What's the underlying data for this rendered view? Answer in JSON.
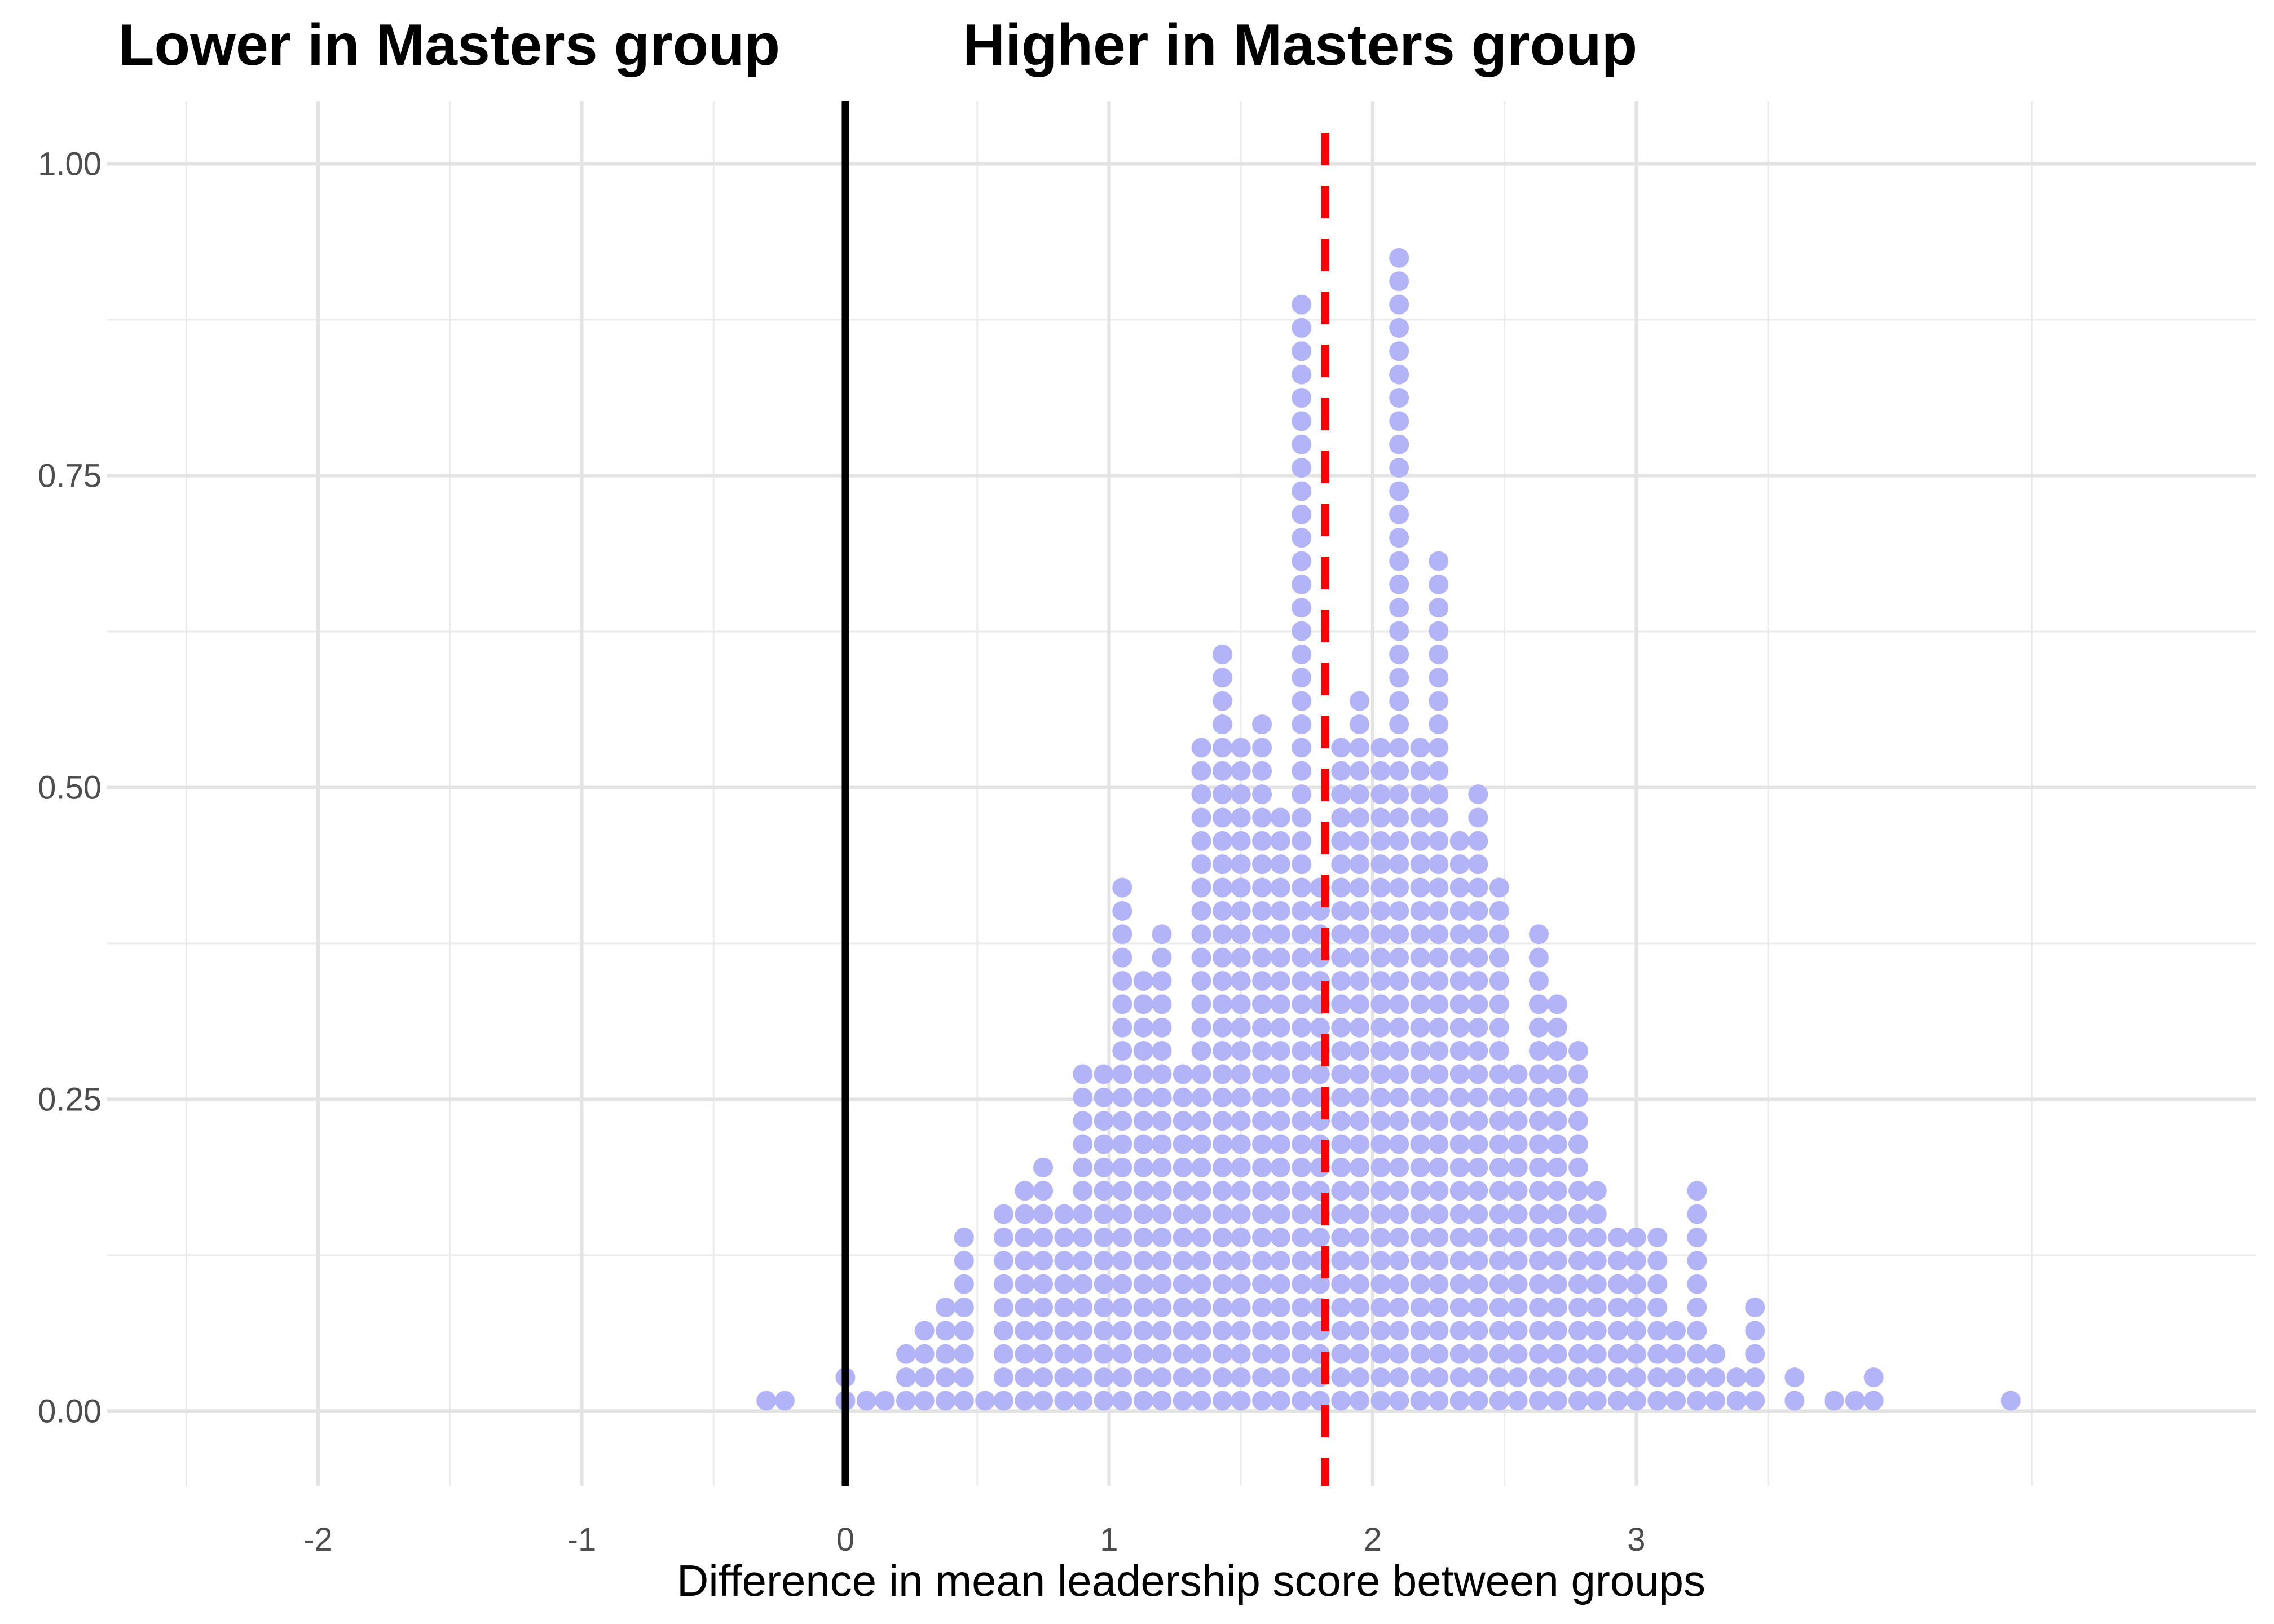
{
  "chart_data": {
    "type": "scatter",
    "subtype": "dotplot",
    "annotations": {
      "left": "Lower in Masters group",
      "right": "Higher in Masters group"
    },
    "xlabel": "Difference in mean leadership score between groups",
    "ylabel": "",
    "xlim": [
      -2.8,
      5.35
    ],
    "ylim": [
      -0.06,
      1.05
    ],
    "x_ticks": [
      -2,
      -1,
      0,
      1,
      2,
      3
    ],
    "x_tick_labels": [
      "-2",
      "-1",
      "0",
      "1",
      "2",
      "3"
    ],
    "y_ticks": [
      0,
      0.25,
      0.5,
      0.75,
      1
    ],
    "y_tick_labels": [
      "0.00",
      "0.25",
      "0.50",
      "0.75",
      "1.00"
    ],
    "grid": true,
    "dot_color": "#b3b3f7",
    "reference_lines": [
      {
        "x": 0,
        "color": "#000000",
        "style": "solid"
      },
      {
        "x": 1.82,
        "color": "#ff0000",
        "style": "dashed"
      }
    ],
    "stack_step": 0.0187,
    "stack_base": 0.0083,
    "stacks": [
      {
        "x": -0.3,
        "n": 1
      },
      {
        "x": -0.23,
        "n": 1
      },
      {
        "x": 0.0,
        "n": 2
      },
      {
        "x": 0.08,
        "n": 1
      },
      {
        "x": 0.15,
        "n": 1
      },
      {
        "x": 0.23,
        "n": 3
      },
      {
        "x": 0.3,
        "n": 4
      },
      {
        "x": 0.38,
        "n": 5
      },
      {
        "x": 0.45,
        "n": 8
      },
      {
        "x": 0.53,
        "n": 1
      },
      {
        "x": 0.6,
        "n": 9
      },
      {
        "x": 0.68,
        "n": 10
      },
      {
        "x": 0.75,
        "n": 11
      },
      {
        "x": 0.83,
        "n": 9
      },
      {
        "x": 0.9,
        "n": 15
      },
      {
        "x": 0.98,
        "n": 15
      },
      {
        "x": 1.05,
        "n": 23
      },
      {
        "x": 1.13,
        "n": 19
      },
      {
        "x": 1.2,
        "n": 21
      },
      {
        "x": 1.28,
        "n": 15
      },
      {
        "x": 1.35,
        "n": 29
      },
      {
        "x": 1.43,
        "n": 33
      },
      {
        "x": 1.5,
        "n": 29
      },
      {
        "x": 1.58,
        "n": 30
      },
      {
        "x": 1.65,
        "n": 26
      },
      {
        "x": 1.73,
        "n": 48
      },
      {
        "x": 1.8,
        "n": 23
      },
      {
        "x": 1.88,
        "n": 29
      },
      {
        "x": 1.95,
        "n": 31
      },
      {
        "x": 2.03,
        "n": 29
      },
      {
        "x": 2.1,
        "n": 50
      },
      {
        "x": 2.18,
        "n": 29
      },
      {
        "x": 2.25,
        "n": 37
      },
      {
        "x": 2.33,
        "n": 25
      },
      {
        "x": 2.4,
        "n": 27
      },
      {
        "x": 2.48,
        "n": 23
      },
      {
        "x": 2.55,
        "n": 15
      },
      {
        "x": 2.63,
        "n": 21
      },
      {
        "x": 2.7,
        "n": 18
      },
      {
        "x": 2.78,
        "n": 16
      },
      {
        "x": 2.85,
        "n": 10
      },
      {
        "x": 2.93,
        "n": 8
      },
      {
        "x": 3.0,
        "n": 8
      },
      {
        "x": 3.08,
        "n": 8
      },
      {
        "x": 3.15,
        "n": 4
      },
      {
        "x": 3.23,
        "n": 10
      },
      {
        "x": 3.3,
        "n": 3
      },
      {
        "x": 3.38,
        "n": 2
      },
      {
        "x": 3.45,
        "n": 5
      },
      {
        "x": 3.6,
        "n": 2
      },
      {
        "x": 3.75,
        "n": 1
      },
      {
        "x": 3.83,
        "n": 1
      },
      {
        "x": 3.9,
        "n": 2
      },
      {
        "x": 4.42,
        "n": 1
      }
    ]
  }
}
